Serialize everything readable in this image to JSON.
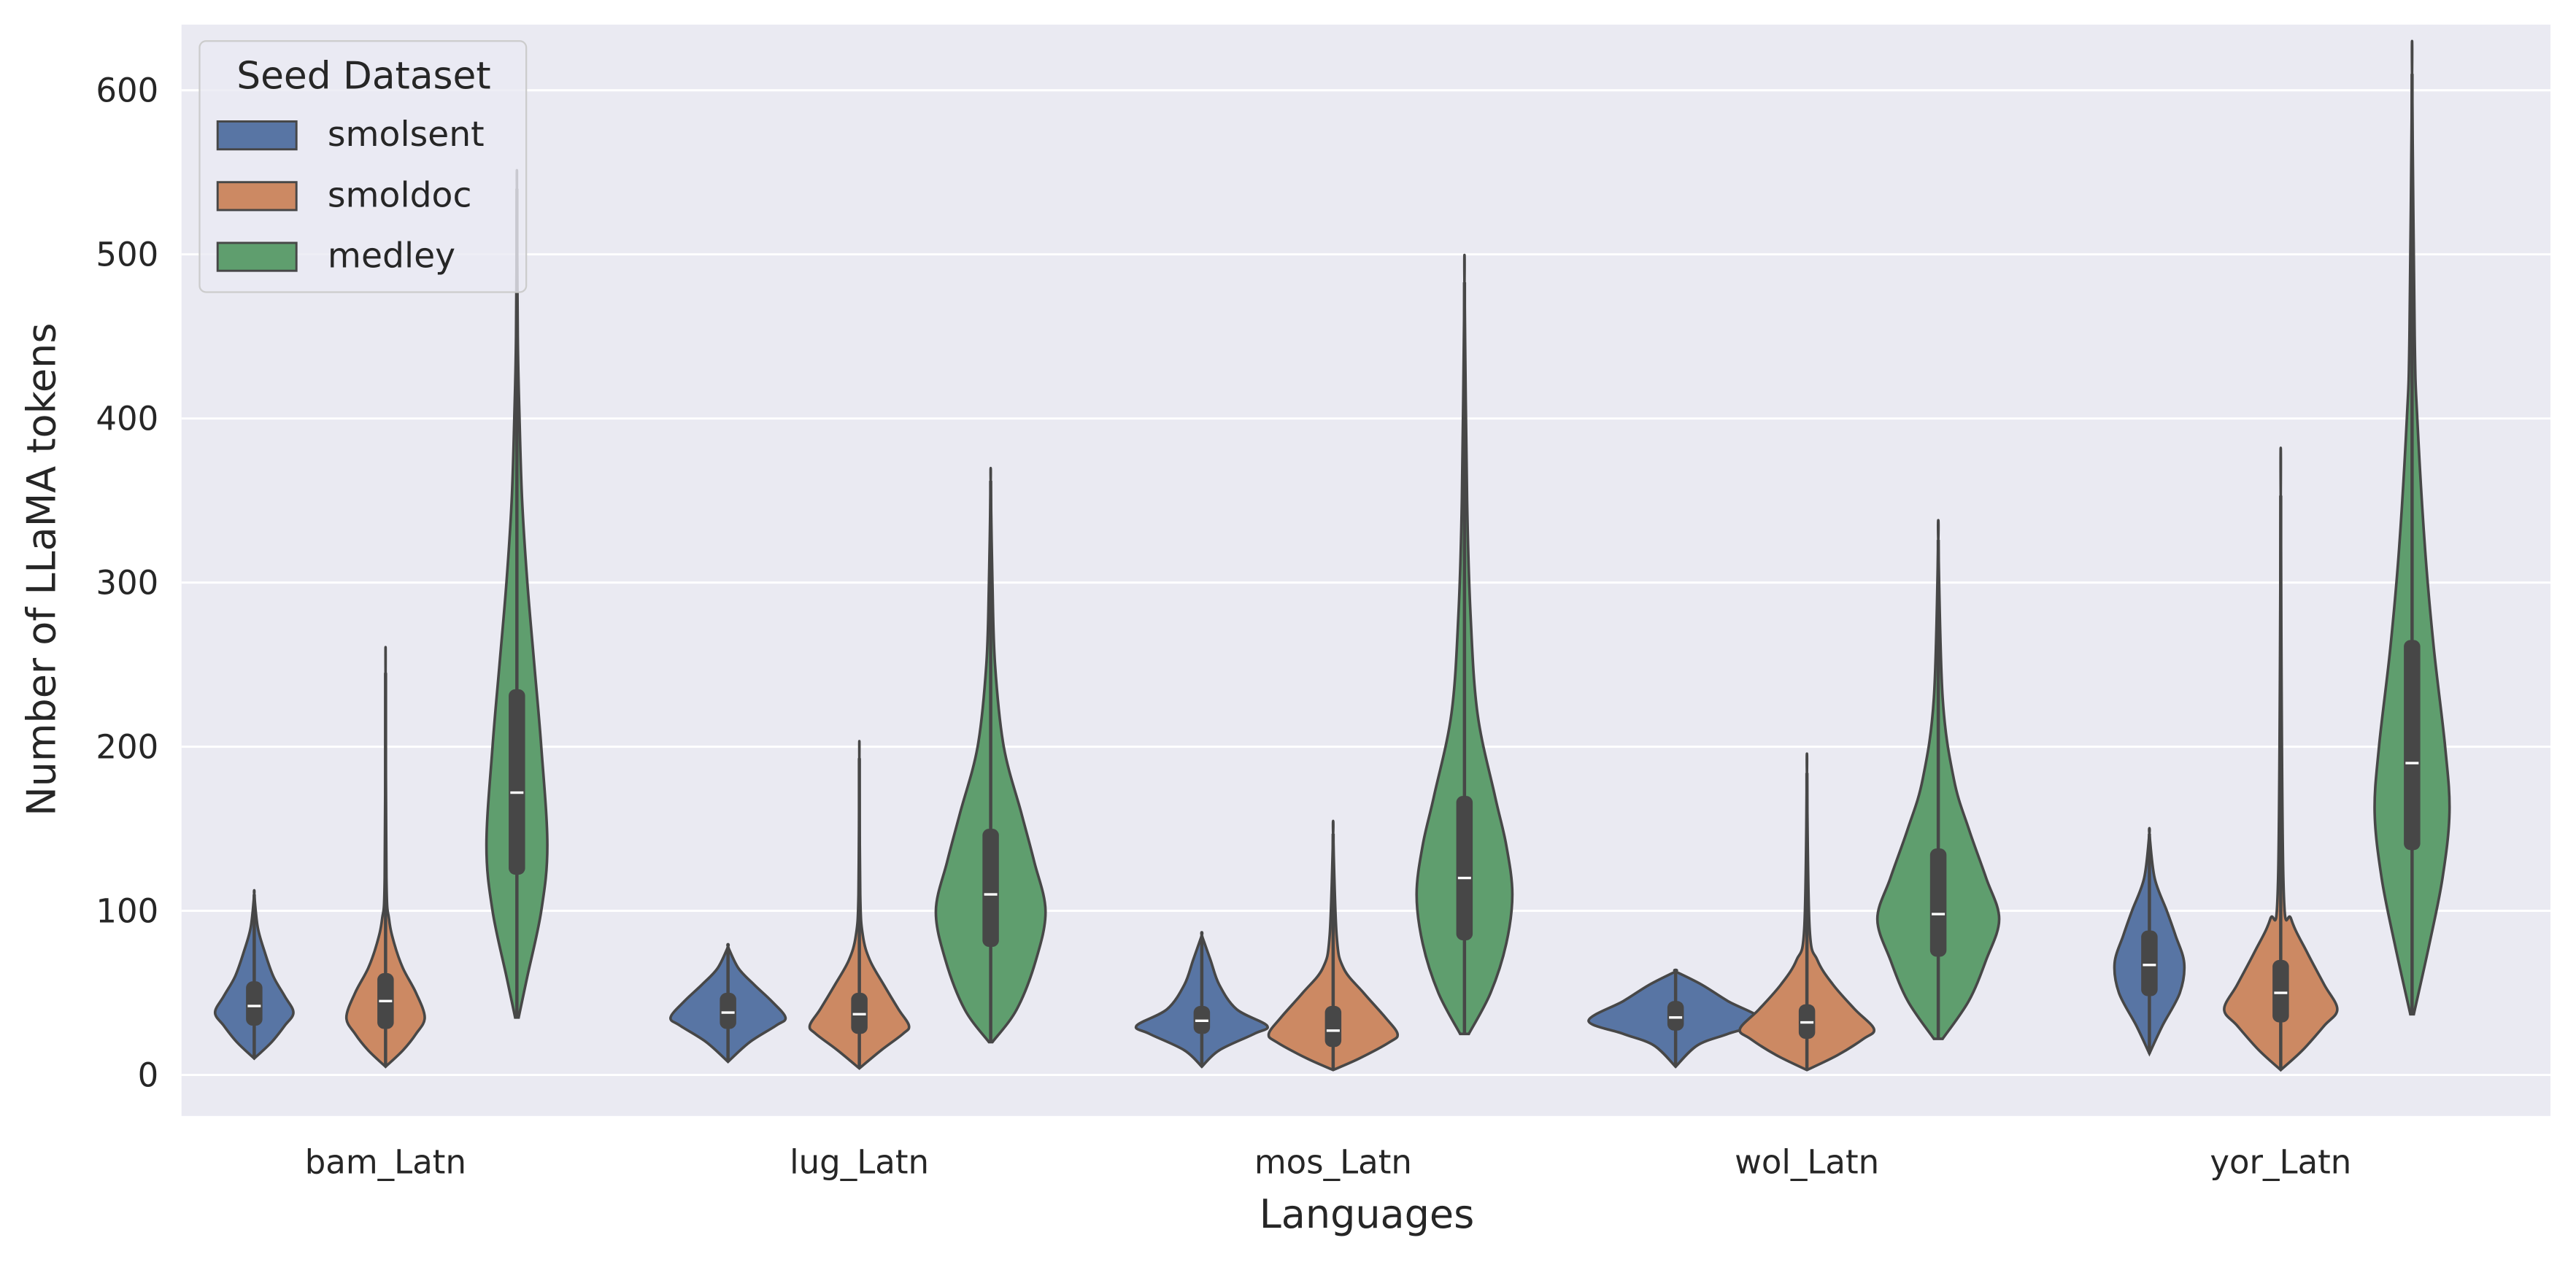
{
  "chart_data": {
    "type": "violin",
    "xlabel": "Languages",
    "ylabel": "Number of LLaMA tokens",
    "ylim": [
      -25,
      640
    ],
    "yticks": [
      0,
      100,
      200,
      300,
      400,
      500,
      600
    ],
    "grid": true,
    "legend": {
      "title": "Seed Dataset",
      "placement": "top-left"
    },
    "categories": [
      "bam_Latn",
      "lug_Latn",
      "mos_Latn",
      "wol_Latn",
      "yor_Latn"
    ],
    "series": [
      {
        "name": "smolsent",
        "color": "#5875a4",
        "violins": [
          {
            "min": 10,
            "max": 110,
            "q1": 30,
            "median": 42,
            "q3": 57,
            "density": [
              [
                10,
                0
              ],
              [
                20,
                0.2
              ],
              [
                30,
                0.35
              ],
              [
                38,
                0.45
              ],
              [
                48,
                0.35
              ],
              [
                60,
                0.22
              ],
              [
                75,
                0.12
              ],
              [
                90,
                0.04
              ],
              [
                110,
                0
              ]
            ]
          },
          {
            "min": 8,
            "max": 78,
            "q1": 28,
            "median": 38,
            "q3": 50,
            "density": [
              [
                8,
                0
              ],
              [
                20,
                0.25
              ],
              [
                30,
                0.55
              ],
              [
                35,
                0.66
              ],
              [
                45,
                0.5
              ],
              [
                55,
                0.3
              ],
              [
                65,
                0.12
              ],
              [
                78,
                0
              ]
            ]
          },
          {
            "min": 5,
            "max": 85,
            "q1": 25,
            "median": 33,
            "q3": 42,
            "density": [
              [
                5,
                0
              ],
              [
                15,
                0.2
              ],
              [
                25,
                0.6
              ],
              [
                30,
                0.75
              ],
              [
                40,
                0.4
              ],
              [
                55,
                0.2
              ],
              [
                70,
                0.1
              ],
              [
                85,
                0
              ]
            ]
          },
          {
            "min": 5,
            "max": 63,
            "q1": 27,
            "median": 35,
            "q3": 45,
            "density": [
              [
                5,
                0
              ],
              [
                18,
                0.25
              ],
              [
                25,
                0.6
              ],
              [
                33,
                1.0
              ],
              [
                45,
                0.6
              ],
              [
                55,
                0.3
              ],
              [
                63,
                0
              ]
            ]
          },
          {
            "min": 13,
            "max": 147,
            "q1": 48,
            "median": 67,
            "q3": 88,
            "density": [
              [
                13,
                0
              ],
              [
                30,
                0.15
              ],
              [
                50,
                0.35
              ],
              [
                68,
                0.4
              ],
              [
                85,
                0.3
              ],
              [
                100,
                0.2
              ],
              [
                120,
                0.06
              ],
              [
                147,
                0
              ]
            ]
          }
        ]
      },
      {
        "name": "smoldoc",
        "color": "#cc8963",
        "violins": [
          {
            "min": 5,
            "max": 245,
            "q1": 28,
            "median": 45,
            "q3": 62,
            "density": [
              [
                5,
                0
              ],
              [
                15,
                0.2
              ],
              [
                25,
                0.35
              ],
              [
                35,
                0.45
              ],
              [
                50,
                0.35
              ],
              [
                65,
                0.2
              ],
              [
                80,
                0.1
              ],
              [
                95,
                0.04
              ],
              [
                120,
                0.01
              ],
              [
                245,
                0
              ]
            ]
          },
          {
            "min": 4,
            "max": 193,
            "q1": 25,
            "median": 37,
            "q3": 50,
            "density": [
              [
                4,
                0
              ],
              [
                15,
                0.25
              ],
              [
                25,
                0.5
              ],
              [
                30,
                0.57
              ],
              [
                40,
                0.45
              ],
              [
                55,
                0.28
              ],
              [
                70,
                0.12
              ],
              [
                85,
                0.04
              ],
              [
                110,
                0.01
              ],
              [
                193,
                0
              ]
            ]
          },
          {
            "min": 3,
            "max": 147,
            "q1": 17,
            "median": 27,
            "q3": 42,
            "density": [
              [
                3,
                0
              ],
              [
                10,
                0.3
              ],
              [
                20,
                0.65
              ],
              [
                25,
                0.74
              ],
              [
                35,
                0.6
              ],
              [
                50,
                0.35
              ],
              [
                65,
                0.12
              ],
              [
                85,
                0.04
              ],
              [
                147,
                0
              ]
            ]
          },
          {
            "min": 3,
            "max": 184,
            "q1": 22,
            "median": 32,
            "q3": 43,
            "density": [
              [
                3,
                0
              ],
              [
                12,
                0.35
              ],
              [
                22,
                0.65
              ],
              [
                28,
                0.77
              ],
              [
                40,
                0.55
              ],
              [
                55,
                0.3
              ],
              [
                70,
                0.12
              ],
              [
                90,
                0.03
              ],
              [
                184,
                0
              ]
            ]
          },
          {
            "min": 3,
            "max": 353,
            "q1": 32,
            "median": 50,
            "q3": 70,
            "density": [
              [
                3,
                0
              ],
              [
                15,
                0.25
              ],
              [
                30,
                0.5
              ],
              [
                40,
                0.65
              ],
              [
                55,
                0.5
              ],
              [
                75,
                0.3
              ],
              [
                95,
                0.12
              ],
              [
                120,
                0.03
              ],
              [
                353,
                0
              ]
            ]
          }
        ]
      },
      {
        "name": "medley",
        "color": "#5f9e6e",
        "violins": [
          {
            "min": 35,
            "max": 540,
            "q1": 122,
            "median": 172,
            "q3": 235,
            "density": [
              [
                35,
                0.02
              ],
              [
                60,
                0.12
              ],
              [
                100,
                0.28
              ],
              [
                140,
                0.35
              ],
              [
                200,
                0.28
              ],
              [
                250,
                0.2
              ],
              [
                300,
                0.12
              ],
              [
                350,
                0.06
              ],
              [
                400,
                0.03
              ],
              [
                450,
                0.01
              ],
              [
                540,
                0
              ]
            ]
          },
          {
            "min": 20,
            "max": 362,
            "q1": 78,
            "median": 110,
            "q3": 150,
            "density": [
              [
                20,
                0.02
              ],
              [
                40,
                0.3
              ],
              [
                70,
                0.52
              ],
              [
                100,
                0.63
              ],
              [
                130,
                0.5
              ],
              [
                160,
                0.35
              ],
              [
                200,
                0.15
              ],
              [
                250,
                0.05
              ],
              [
                300,
                0.02
              ],
              [
                362,
                0
              ]
            ]
          },
          {
            "min": 25,
            "max": 483,
            "q1": 82,
            "median": 120,
            "q3": 170,
            "density": [
              [
                25,
                0.05
              ],
              [
                50,
                0.3
              ],
              [
                80,
                0.48
              ],
              [
                110,
                0.55
              ],
              [
                140,
                0.48
              ],
              [
                170,
                0.35
              ],
              [
                220,
                0.15
              ],
              [
                280,
                0.07
              ],
              [
                350,
                0.03
              ],
              [
                483,
                0
              ]
            ]
          },
          {
            "min": 22,
            "max": 326,
            "q1": 72,
            "median": 98,
            "q3": 138,
            "density": [
              [
                22,
                0.05
              ],
              [
                45,
                0.35
              ],
              [
                70,
                0.55
              ],
              [
                95,
                0.7
              ],
              [
                120,
                0.55
              ],
              [
                150,
                0.35
              ],
              [
                180,
                0.18
              ],
              [
                230,
                0.05
              ],
              [
                326,
                0
              ]
            ]
          },
          {
            "min": 37,
            "max": 610,
            "q1": 137,
            "median": 190,
            "q3": 265,
            "density": [
              [
                37,
                0.02
              ],
              [
                80,
                0.2
              ],
              [
                120,
                0.35
              ],
              [
                160,
                0.43
              ],
              [
                200,
                0.38
              ],
              [
                260,
                0.25
              ],
              [
                320,
                0.15
              ],
              [
                400,
                0.06
              ],
              [
                450,
                0.03
              ],
              [
                610,
                0
              ]
            ]
          }
        ]
      }
    ]
  }
}
